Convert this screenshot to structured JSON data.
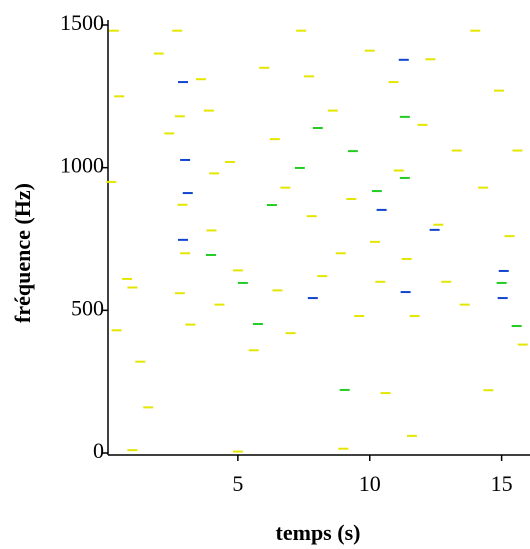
{
  "chart_data": {
    "type": "scatter",
    "xlabel": "temps (s)",
    "ylabel": "fréquence (Hz)",
    "xlim": [
      0,
      16
    ],
    "ylim": [
      0,
      1500
    ],
    "xticks": [
      5,
      10,
      15
    ],
    "yticks": [
      0,
      500,
      1000,
      1500
    ],
    "series": [
      {
        "color": "#e4e600",
        "x": [
          0.3,
          0.5,
          0.2,
          0.8,
          1.0,
          0.4,
          1.3,
          1.6,
          2.0,
          2.4,
          2.7,
          2.8,
          2.9,
          3.0,
          2.8,
          3.2,
          3.6,
          3.9,
          4.1,
          4.0,
          4.3,
          4.7,
          5.0,
          5.6,
          6.0,
          6.4,
          6.8,
          6.5,
          7.0,
          7.4,
          7.7,
          7.8,
          8.2,
          8.6,
          8.9,
          9.3,
          9.6,
          10.0,
          10.2,
          10.4,
          10.6,
          10.9,
          11.1,
          11.4,
          11.7,
          12.0,
          12.3,
          12.6,
          12.9,
          13.3,
          13.6,
          14.0,
          14.3,
          14.5,
          14.9,
          15.3,
          15.6,
          15.8,
          11.6,
          1.0,
          5.0,
          9.0
        ],
        "y": [
          1480,
          1250,
          950,
          610,
          580,
          430,
          320,
          160,
          1400,
          1120,
          1480,
          1180,
          870,
          700,
          560,
          450,
          1310,
          1200,
          980,
          780,
          520,
          1020,
          640,
          360,
          1350,
          1100,
          930,
          570,
          420,
          1480,
          1320,
          830,
          620,
          1200,
          700,
          890,
          480,
          1410,
          740,
          600,
          210,
          1300,
          990,
          680,
          480,
          1150,
          1380,
          800,
          600,
          1060,
          520,
          1480,
          930,
          220,
          1270,
          760,
          1060,
          380,
          60,
          10,
          5,
          15
        ]
      },
      {
        "color": "#22cc22",
        "x": [
          5.76,
          5.19,
          8.03,
          9.36,
          11.33,
          10.27,
          11.33,
          6.29,
          7.35,
          9.05,
          3.98,
          15.0,
          15.57
        ],
        "y": [
          452,
          596,
          1139,
          1058,
          1178,
          918,
          964,
          869,
          999,
          221,
          694,
          596,
          445
        ]
      },
      {
        "color": "#1144cc",
        "x": [
          2.92,
          3.0,
          2.92,
          11.29,
          11.36,
          15.04,
          15.08,
          12.46,
          10.45,
          7.84,
          3.1
        ],
        "y": [
          1300,
          1027,
          747,
          1378,
          564,
          543,
          638,
          782,
          852,
          543,
          911
        ]
      }
    ]
  }
}
